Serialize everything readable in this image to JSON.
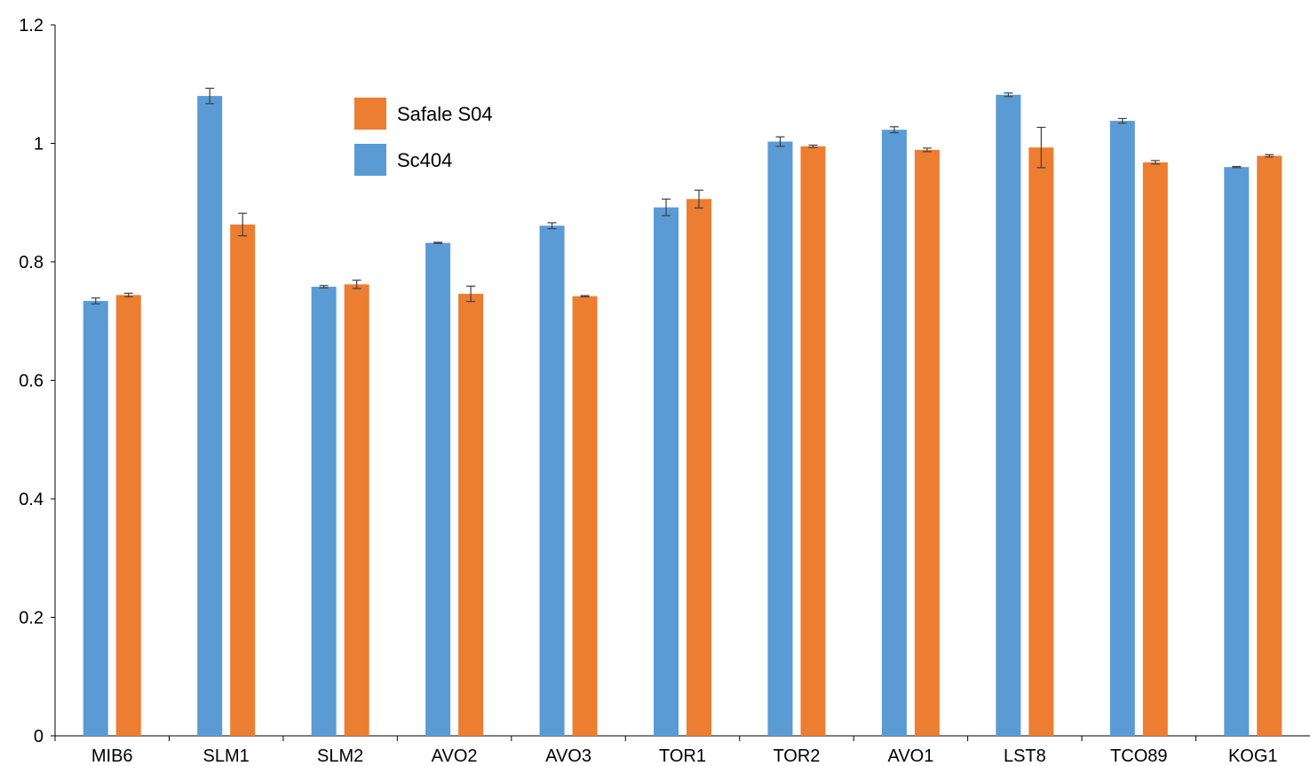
{
  "chart_data": {
    "type": "bar",
    "title": "",
    "xlabel": "",
    "ylabel": "",
    "ylim": [
      0,
      1.2
    ],
    "yticks": [
      "0",
      "0.2",
      "0.4",
      "0.6",
      "0.8",
      "1",
      "1.2"
    ],
    "grid": false,
    "legend_position": "top-left-center",
    "categories": [
      "MIB6",
      "SLM1",
      "SLM2",
      "AVO2",
      "AVO3",
      "TOR1",
      "TOR2",
      "AVO1",
      "LST8",
      "TCO89",
      "KOG1"
    ],
    "series": [
      {
        "name": "Sc404",
        "color": "#5B9BD5",
        "values": [
          0.734,
          1.08,
          0.758,
          0.832,
          0.861,
          0.892,
          1.003,
          1.023,
          1.082,
          1.038,
          0.96
        ],
        "errors": [
          0.005,
          0.013,
          0.002,
          0.001,
          0.005,
          0.014,
          0.008,
          0.005,
          0.003,
          0.004,
          0.001
        ]
      },
      {
        "name": "Safale S04",
        "color": "#ED7D31",
        "values": [
          0.744,
          0.863,
          0.762,
          0.746,
          0.742,
          0.906,
          0.995,
          0.989,
          0.993,
          0.968,
          0.979
        ],
        "errors": [
          0.003,
          0.019,
          0.007,
          0.013,
          0.001,
          0.015,
          0.002,
          0.003,
          0.034,
          0.003,
          0.002
        ]
      }
    ],
    "legend": [
      {
        "name": "Safale S04",
        "color": "#ED7D31"
      },
      {
        "name": "Sc404",
        "color": "#5B9BD5"
      }
    ]
  }
}
